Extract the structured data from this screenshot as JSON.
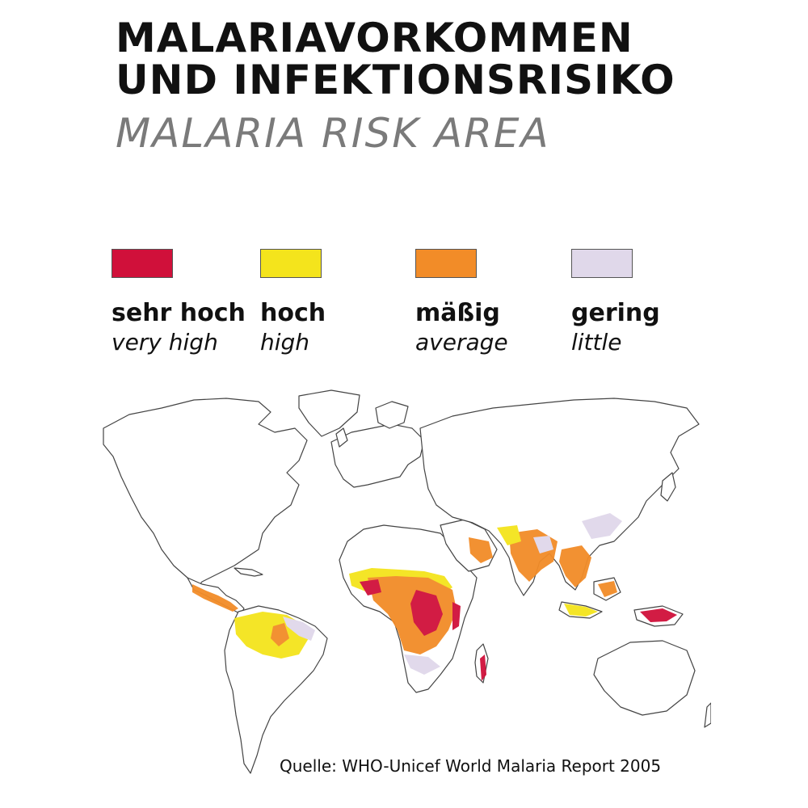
{
  "title": {
    "line1": "MALARIAVORKOMMEN",
    "line2": "UND INFEKTIONSRISIKO",
    "english": "MALARIA RISK AREA"
  },
  "legend": [
    {
      "de": "sehr hoch",
      "en": "very high",
      "color": "#d0103a"
    },
    {
      "de": "hoch",
      "en": "high",
      "color": "#f4e41c"
    },
    {
      "de": "mäßig",
      "en": "average",
      "color": "#f28c28"
    },
    {
      "de": "gering",
      "en": "little",
      "color": "#e0d8ea"
    }
  ],
  "map": {
    "land_color": "#ffffff",
    "border_color": "#444444",
    "risk_colors": {
      "very_high": "#d0103a",
      "high": "#f4e41c",
      "average": "#f28c28",
      "little": "#e0d8ea"
    }
  },
  "source": "Quelle: WHO-Unicef World Malaria Report 2005"
}
